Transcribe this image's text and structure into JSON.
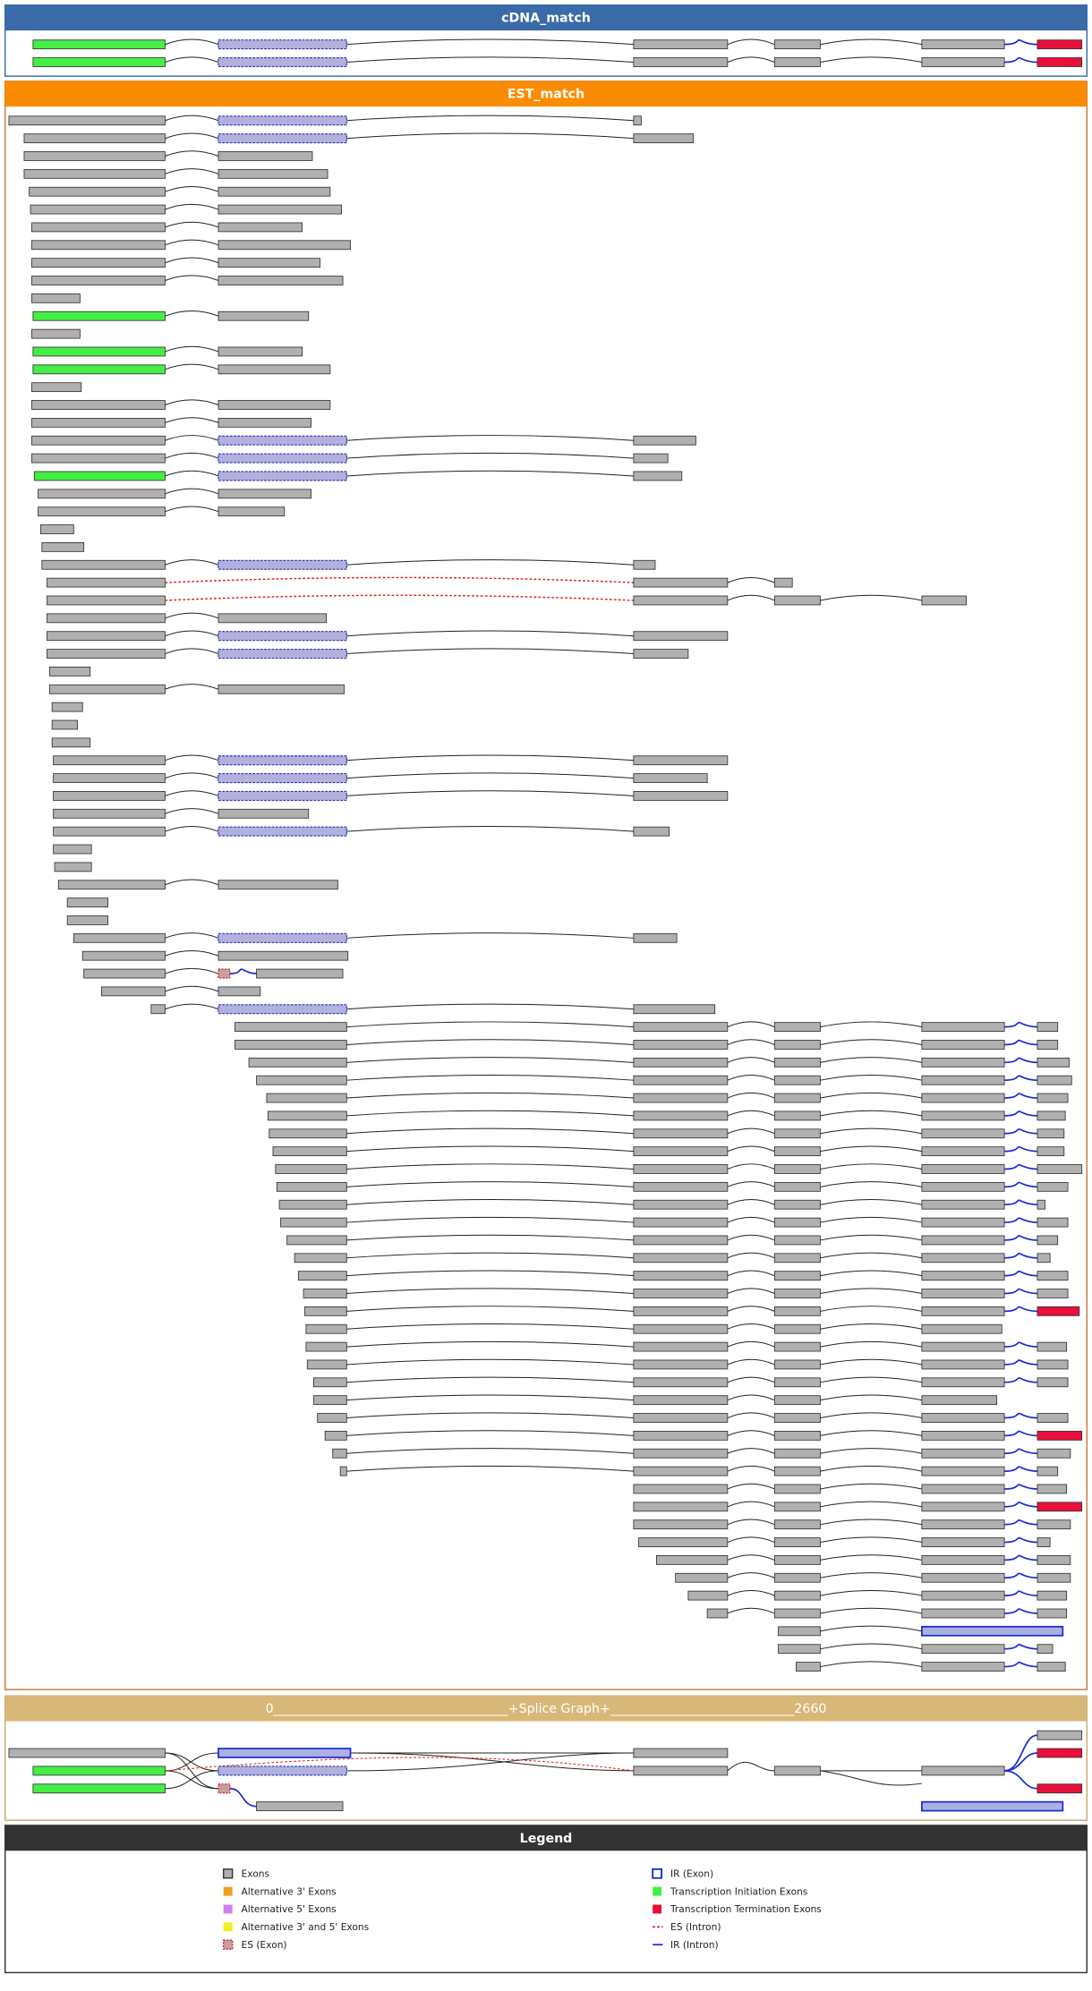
{
  "panels": {
    "cdna": {
      "title": "cDNA_match"
    },
    "est": {
      "title": "EST_match"
    },
    "splice_graph": {
      "title": "0_____________________________________+Splice Graph+_____________________________2660"
    }
  },
  "legend": {
    "title": "Legend",
    "items": [
      {
        "label": "Exons"
      },
      {
        "label": "Alternative 3' Exons"
      },
      {
        "label": "Alternative 5' Exons"
      },
      {
        "label": "Alternative 3' and 5' Exons"
      },
      {
        "label": "ES (Exon)"
      },
      {
        "label": "IR (Exon)"
      },
      {
        "label": "Transcription Initiation Exons"
      },
      {
        "label": "Transcription Termination Exons"
      },
      {
        "label": "ES (Intron)"
      },
      {
        "label": "IR (Intron)"
      }
    ]
  }
}
